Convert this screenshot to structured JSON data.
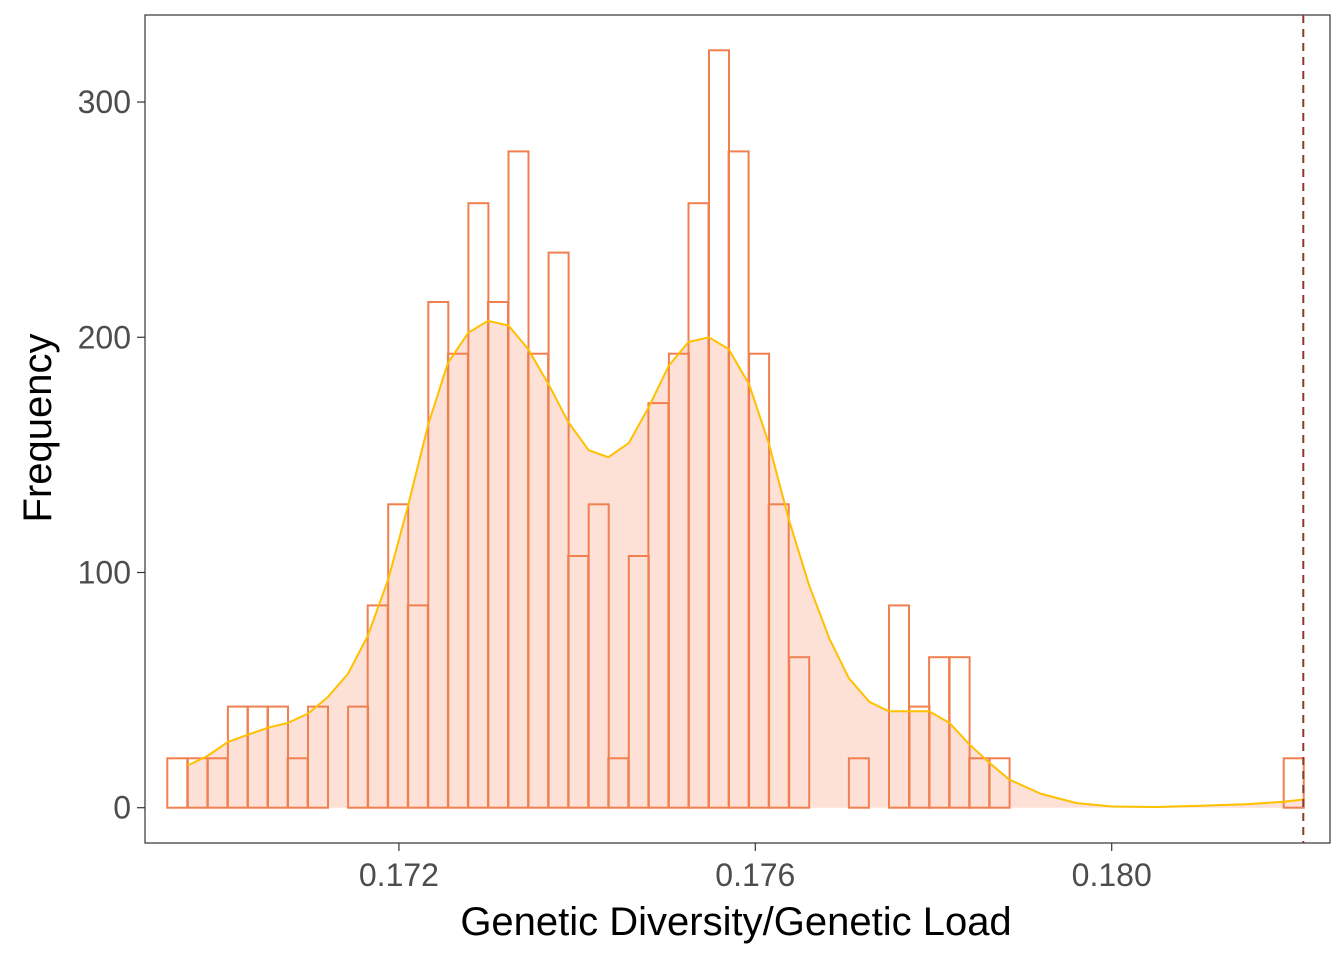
{
  "chart_data": {
    "type": "bar",
    "subtype": "histogram-with-density",
    "xlabel": "Genetic Diversity/Genetic Load",
    "ylabel": "Frequency",
    "xlim": [
      0.16915,
      0.18245
    ],
    "ylim": [
      -15,
      337
    ],
    "x_ticks": [
      {
        "value": 0.172,
        "label": "0.172"
      },
      {
        "value": 0.176,
        "label": "0.176"
      },
      {
        "value": 0.18,
        "label": "0.180"
      }
    ],
    "y_ticks": [
      {
        "value": 0,
        "label": "0"
      },
      {
        "value": 100,
        "label": "100"
      },
      {
        "value": 200,
        "label": "200"
      },
      {
        "value": 300,
        "label": "300"
      }
    ],
    "grid": false,
    "legend": "none",
    "reference_line": {
      "x": 0.18215,
      "style": "dashed",
      "color": "#8b3a2a"
    },
    "colors": {
      "bar_outline": "#f08050",
      "density_fill": "#fde0d6",
      "density_line": "#ffc000",
      "panel_border": "#333333"
    },
    "bin_width": 0.000225,
    "bins": [
      {
        "x0": 0.1694,
        "count": 21
      },
      {
        "x0": 0.16963,
        "count": 21
      },
      {
        "x0": 0.16985,
        "count": 21
      },
      {
        "x0": 0.17008,
        "count": 43
      },
      {
        "x0": 0.1703,
        "count": 43
      },
      {
        "x0": 0.17053,
        "count": 43
      },
      {
        "x0": 0.17075,
        "count": 21
      },
      {
        "x0": 0.17098,
        "count": 43
      },
      {
        "x0": 0.17143,
        "count": 43
      },
      {
        "x0": 0.17165,
        "count": 86
      },
      {
        "x0": 0.17188,
        "count": 129
      },
      {
        "x0": 0.1721,
        "count": 86
      },
      {
        "x0": 0.17233,
        "count": 215
      },
      {
        "x0": 0.17255,
        "count": 193
      },
      {
        "x0": 0.17278,
        "count": 257
      },
      {
        "x0": 0.173,
        "count": 215
      },
      {
        "x0": 0.17323,
        "count": 279
      },
      {
        "x0": 0.17345,
        "count": 193
      },
      {
        "x0": 0.17368,
        "count": 236
      },
      {
        "x0": 0.1739,
        "count": 107
      },
      {
        "x0": 0.17413,
        "count": 129
      },
      {
        "x0": 0.17435,
        "count": 21
      },
      {
        "x0": 0.17458,
        "count": 107
      },
      {
        "x0": 0.1748,
        "count": 172
      },
      {
        "x0": 0.17503,
        "count": 193
      },
      {
        "x0": 0.17525,
        "count": 257
      },
      {
        "x0": 0.17548,
        "count": 322
      },
      {
        "x0": 0.1757,
        "count": 279
      },
      {
        "x0": 0.17593,
        "count": 193
      },
      {
        "x0": 0.17615,
        "count": 129
      },
      {
        "x0": 0.17638,
        "count": 64
      },
      {
        "x0": 0.17705,
        "count": 21
      },
      {
        "x0": 0.1775,
        "count": 86
      },
      {
        "x0": 0.17773,
        "count": 43
      },
      {
        "x0": 0.17795,
        "count": 64
      },
      {
        "x0": 0.17818,
        "count": 64
      },
      {
        "x0": 0.1784,
        "count": 21
      },
      {
        "x0": 0.17863,
        "count": 21
      },
      {
        "x0": 0.18193,
        "count": 21
      }
    ],
    "density_curve": [
      [
        0.16963,
        18
      ],
      [
        0.16985,
        22
      ],
      [
        0.17008,
        28
      ],
      [
        0.1703,
        31
      ],
      [
        0.17053,
        34
      ],
      [
        0.17075,
        36
      ],
      [
        0.17098,
        40
      ],
      [
        0.1712,
        47
      ],
      [
        0.17143,
        57
      ],
      [
        0.17165,
        73
      ],
      [
        0.17188,
        97
      ],
      [
        0.1721,
        128
      ],
      [
        0.17233,
        163
      ],
      [
        0.17255,
        189
      ],
      [
        0.17278,
        202
      ],
      [
        0.173,
        207
      ],
      [
        0.17323,
        205
      ],
      [
        0.17345,
        195
      ],
      [
        0.17368,
        180
      ],
      [
        0.1739,
        164
      ],
      [
        0.17413,
        152
      ],
      [
        0.17435,
        149
      ],
      [
        0.17458,
        155
      ],
      [
        0.1748,
        170
      ],
      [
        0.17503,
        188
      ],
      [
        0.17525,
        198
      ],
      [
        0.17548,
        200
      ],
      [
        0.1757,
        195
      ],
      [
        0.17593,
        180
      ],
      [
        0.17615,
        155
      ],
      [
        0.17638,
        122
      ],
      [
        0.1766,
        95
      ],
      [
        0.17683,
        72
      ],
      [
        0.17705,
        55
      ],
      [
        0.17728,
        45
      ],
      [
        0.1775,
        41
      ],
      [
        0.17773,
        41
      ],
      [
        0.17795,
        41
      ],
      [
        0.17818,
        36
      ],
      [
        0.1784,
        27
      ],
      [
        0.17863,
        19
      ],
      [
        0.17885,
        12
      ],
      [
        0.1792,
        6
      ],
      [
        0.1796,
        2
      ],
      [
        0.18,
        0.5
      ],
      [
        0.1805,
        0.3
      ],
      [
        0.181,
        0.8
      ],
      [
        0.1815,
        1.5
      ],
      [
        0.18193,
        2.5
      ],
      [
        0.18215,
        3.5
      ]
    ]
  }
}
